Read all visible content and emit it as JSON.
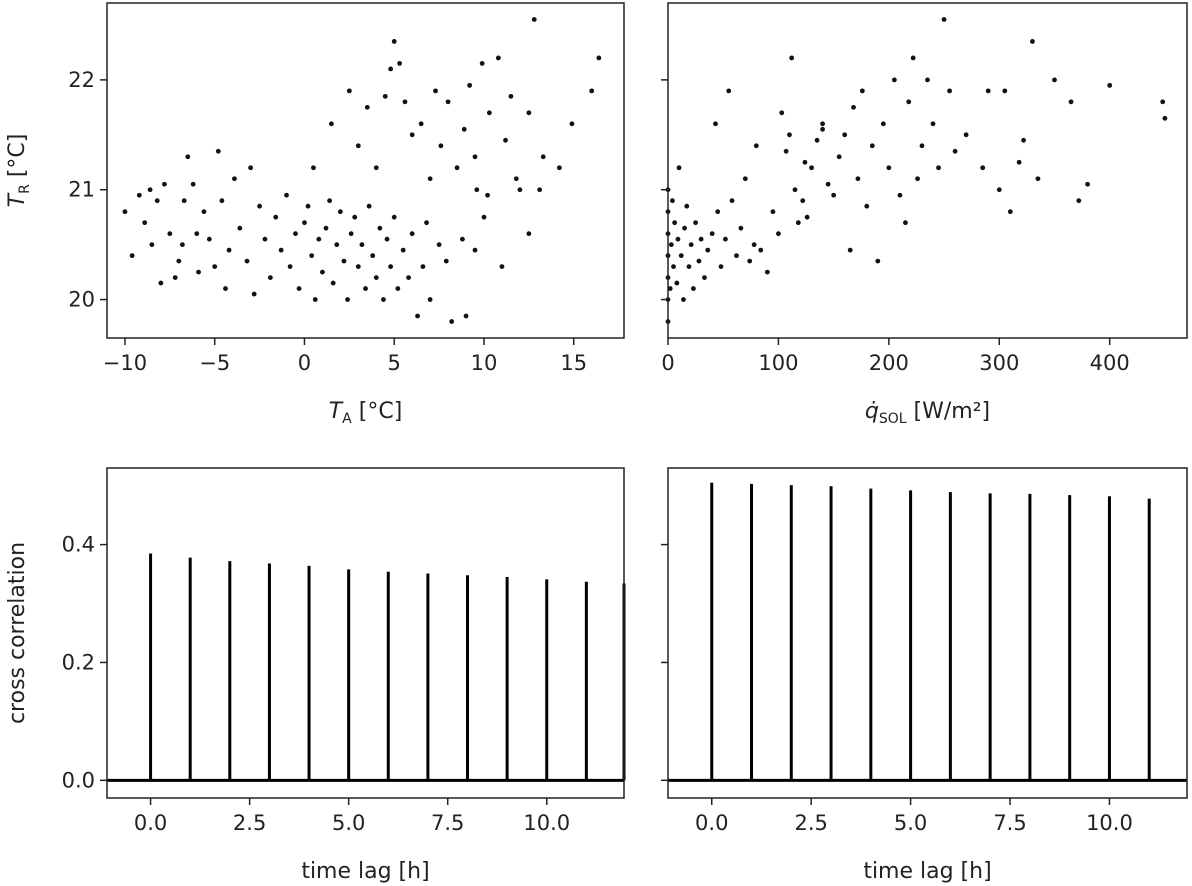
{
  "chart_data": [
    {
      "panel": "top-left",
      "type": "scatter",
      "xlabel": {
        "symbol": "T",
        "sub": "A",
        "unit": " [°C]"
      },
      "ylabel": {
        "symbol": "T",
        "sub": "R",
        "unit": " [°C]"
      },
      "xlim": [
        -11,
        17.8
      ],
      "ylim": [
        19.65,
        22.7
      ],
      "xticks": [
        -10,
        -5,
        0,
        5,
        10,
        15
      ],
      "yticks": [
        20,
        21,
        22
      ],
      "grid": false,
      "points": [
        [
          -10,
          20.8
        ],
        [
          -9.6,
          20.4
        ],
        [
          -8.9,
          20.7
        ],
        [
          -8.5,
          20.5
        ],
        [
          -8.6,
          21
        ],
        [
          -8.2,
          20.9
        ],
        [
          -7.8,
          21.05
        ],
        [
          -7.5,
          20.6
        ],
        [
          -7.2,
          20.2
        ],
        [
          -7.0,
          20.35
        ],
        [
          -6.7,
          20.9
        ],
        [
          -6.5,
          21.3
        ],
        [
          -6.2,
          21.05
        ],
        [
          -6.0,
          20.6
        ],
        [
          -5.6,
          20.8
        ],
        [
          -5.3,
          20.55
        ],
        [
          -5.0,
          20.3
        ],
        [
          -4.8,
          21.35
        ],
        [
          -4.6,
          20.9
        ],
        [
          -4.2,
          20.45
        ],
        [
          -3.9,
          21.1
        ],
        [
          -3.6,
          20.65
        ],
        [
          -3.2,
          20.35
        ],
        [
          -3.0,
          21.2
        ],
        [
          -2.8,
          20.05
        ],
        [
          -2.5,
          20.85
        ],
        [
          -2.2,
          20.55
        ],
        [
          -1.9,
          20.2
        ],
        [
          -1.6,
          20.75
        ],
        [
          -1.3,
          20.45
        ],
        [
          -1.0,
          20.95
        ],
        [
          -0.8,
          20.3
        ],
        [
          -0.5,
          20.6
        ],
        [
          -0.3,
          20.1
        ],
        [
          0.0,
          20.7
        ],
        [
          0.2,
          20.85
        ],
        [
          0.4,
          20.4
        ],
        [
          0.6,
          20.0
        ],
        [
          0.8,
          20.55
        ],
        [
          1.0,
          20.25
        ],
        [
          1.2,
          20.65
        ],
        [
          1.4,
          20.9
        ],
        [
          1.6,
          20.15
        ],
        [
          1.8,
          20.5
        ],
        [
          2.0,
          20.8
        ],
        [
          2.2,
          20.35
        ],
        [
          2.4,
          20.0
        ],
        [
          2.6,
          20.6
        ],
        [
          2.8,
          20.75
        ],
        [
          3.0,
          20.3
        ],
        [
          3.2,
          20.5
        ],
        [
          3.4,
          20.1
        ],
        [
          3.6,
          20.85
        ],
        [
          3.8,
          20.4
        ],
        [
          4.0,
          20.2
        ],
        [
          4.2,
          20.65
        ],
        [
          4.4,
          20.0
        ],
        [
          4.6,
          20.55
        ],
        [
          4.8,
          20.3
        ],
        [
          5.0,
          20.75
        ],
        [
          5.2,
          20.1
        ],
        [
          5.5,
          20.45
        ],
        [
          5.8,
          20.2
        ],
        [
          6.0,
          20.6
        ],
        [
          6.3,
          19.85
        ],
        [
          6.6,
          20.3
        ],
        [
          7.0,
          20.0
        ],
        [
          7.5,
          20.5
        ],
        [
          8.2,
          19.8
        ],
        [
          9.0,
          19.85
        ],
        [
          9.5,
          20.45
        ],
        [
          10,
          20.75
        ],
        [
          11,
          20.3
        ],
        [
          12.5,
          20.6
        ],
        [
          13.1,
          21.0
        ],
        [
          -9.2,
          20.95
        ],
        [
          -8.0,
          20.15
        ],
        [
          -6.8,
          20.5
        ],
        [
          -5.9,
          20.25
        ],
        [
          -4.4,
          20.1
        ],
        [
          0.5,
          21.2
        ],
        [
          1.5,
          21.6
        ],
        [
          2.5,
          21.9
        ],
        [
          3.0,
          21.4
        ],
        [
          3.5,
          21.75
        ],
        [
          4.0,
          21.2
        ],
        [
          4.5,
          21.85
        ],
        [
          4.8,
          22.1
        ],
        [
          5.0,
          22.35
        ],
        [
          5.3,
          22.15
        ],
        [
          5.6,
          21.8
        ],
        [
          6.0,
          21.5
        ],
        [
          6.5,
          21.6
        ],
        [
          7.0,
          21.1
        ],
        [
          7.3,
          21.9
        ],
        [
          7.6,
          21.4
        ],
        [
          8.0,
          21.8
        ],
        [
          8.5,
          21.2
        ],
        [
          8.9,
          21.55
        ],
        [
          9.2,
          21.95
        ],
        [
          9.5,
          21.3
        ],
        [
          9.9,
          22.15
        ],
        [
          10.3,
          21.7
        ],
        [
          10.8,
          22.2
        ],
        [
          11.2,
          21.45
        ],
        [
          11.5,
          21.85
        ],
        [
          12.0,
          21.0
        ],
        [
          12.5,
          21.7
        ],
        [
          12.8,
          22.55
        ],
        [
          13.3,
          21.3
        ],
        [
          14.2,
          21.2
        ],
        [
          14.9,
          21.6
        ],
        [
          16.0,
          21.9
        ],
        [
          16.4,
          22.2
        ],
        [
          10.2,
          20.95
        ],
        [
          9.6,
          21.0
        ],
        [
          11.8,
          21.1
        ],
        [
          7.9,
          20.35
        ],
        [
          8.8,
          20.55
        ],
        [
          6.8,
          20.7
        ]
      ]
    },
    {
      "panel": "top-right",
      "type": "scatter",
      "xlabel": {
        "symbol": "q̇",
        "sub": "SOL",
        "unit": " [W/m²]"
      },
      "xlim": [
        0,
        470
      ],
      "ylim": [
        19.65,
        22.7
      ],
      "xticks": [
        0,
        100,
        200,
        300,
        400
      ],
      "yticks": [
        20,
        21,
        22
      ],
      "grid": false,
      "points": [
        [
          0,
          19.8
        ],
        [
          0,
          20.0
        ],
        [
          0,
          20.2
        ],
        [
          0,
          20.4
        ],
        [
          0,
          20.6
        ],
        [
          0,
          20.8
        ],
        [
          0,
          21.0
        ],
        [
          2,
          20.1
        ],
        [
          3,
          20.5
        ],
        [
          4,
          20.9
        ],
        [
          5,
          20.3
        ],
        [
          6,
          20.7
        ],
        [
          8,
          20.15
        ],
        [
          9,
          20.55
        ],
        [
          10,
          21.2
        ],
        [
          12,
          20.4
        ],
        [
          14,
          20.0
        ],
        [
          15,
          20.65
        ],
        [
          17,
          20.85
        ],
        [
          19,
          20.3
        ],
        [
          21,
          20.5
        ],
        [
          23,
          20.1
        ],
        [
          25,
          20.7
        ],
        [
          28,
          20.35
        ],
        [
          30,
          20.55
        ],
        [
          33,
          20.2
        ],
        [
          36,
          20.45
        ],
        [
          40,
          20.6
        ],
        [
          43,
          21.6
        ],
        [
          45,
          20.8
        ],
        [
          48,
          20.3
        ],
        [
          52,
          20.55
        ],
        [
          55,
          21.9
        ],
        [
          58,
          20.9
        ],
        [
          62,
          20.4
        ],
        [
          66,
          20.65
        ],
        [
          70,
          21.1
        ],
        [
          74,
          20.35
        ],
        [
          78,
          20.5
        ],
        [
          80,
          21.4
        ],
        [
          84,
          20.45
        ],
        [
          90,
          20.25
        ],
        [
          95,
          20.8
        ],
        [
          100,
          20.6
        ],
        [
          103,
          21.7
        ],
        [
          107,
          21.35
        ],
        [
          110,
          21.5
        ],
        [
          112,
          22.2
        ],
        [
          115,
          21.0
        ],
        [
          118,
          20.7
        ],
        [
          122,
          20.9
        ],
        [
          126,
          20.75
        ],
        [
          130,
          21.2
        ],
        [
          135,
          21.45
        ],
        [
          140,
          21.6
        ],
        [
          145,
          21.05
        ],
        [
          150,
          20.95
        ],
        [
          155,
          21.3
        ],
        [
          160,
          21.5
        ],
        [
          165,
          20.45
        ],
        [
          168,
          21.75
        ],
        [
          172,
          21.1
        ],
        [
          176,
          21.9
        ],
        [
          180,
          20.85
        ],
        [
          185,
          21.4
        ],
        [
          190,
          20.35
        ],
        [
          195,
          21.6
        ],
        [
          200,
          21.2
        ],
        [
          205,
          22.0
        ],
        [
          210,
          20.95
        ],
        [
          215,
          20.7
        ],
        [
          218,
          21.8
        ],
        [
          222,
          22.2
        ],
        [
          226,
          21.1
        ],
        [
          230,
          21.4
        ],
        [
          235,
          22.0
        ],
        [
          240,
          21.6
        ],
        [
          245,
          21.2
        ],
        [
          250,
          22.55
        ],
        [
          255,
          21.9
        ],
        [
          260,
          21.35
        ],
        [
          270,
          21.5
        ],
        [
          285,
          21.2
        ],
        [
          290,
          21.9
        ],
        [
          300,
          21.0
        ],
        [
          305,
          21.9
        ],
        [
          310,
          20.8
        ],
        [
          318,
          21.25
        ],
        [
          322,
          21.45
        ],
        [
          330,
          22.35
        ],
        [
          335,
          21.1
        ],
        [
          350,
          22.0
        ],
        [
          365,
          21.8
        ],
        [
          372,
          20.9
        ],
        [
          380,
          21.05
        ],
        [
          400,
          21.95
        ],
        [
          448,
          21.8
        ],
        [
          450,
          21.65
        ],
        [
          140,
          21.55
        ],
        [
          124,
          21.25
        ]
      ]
    },
    {
      "panel": "bottom-left",
      "type": "bar",
      "xlabel": "time lag [h]",
      "ylabel": "cross correlation",
      "xlim": [
        -1.1,
        11.95
      ],
      "ylim": [
        -0.03,
        0.53
      ],
      "xticks": [
        0,
        2.5,
        5,
        7.5,
        10
      ],
      "xtick_labels": [
        "0.0",
        "2.5",
        "5.0",
        "7.5",
        "10.0"
      ],
      "yticks": [
        0,
        0.2,
        0.4
      ],
      "ytick_labels": [
        "0.0",
        "0.2",
        "0.4"
      ],
      "x": [
        0,
        1,
        2,
        3,
        4,
        5,
        6,
        7,
        8,
        9,
        10,
        11,
        11.95
      ],
      "values": [
        0.385,
        0.378,
        0.372,
        0.368,
        0.364,
        0.358,
        0.354,
        0.351,
        0.348,
        0.345,
        0.341,
        0.337,
        0.334
      ]
    },
    {
      "panel": "bottom-right",
      "type": "bar",
      "xlabel": "time lag [h]",
      "xlim": [
        -1.1,
        11.95
      ],
      "ylim": [
        -0.03,
        0.53
      ],
      "xticks": [
        0,
        2.5,
        5,
        7.5,
        10
      ],
      "xtick_labels": [
        "0.0",
        "2.5",
        "5.0",
        "7.5",
        "10.0"
      ],
      "yticks": [
        0,
        0.2,
        0.4
      ],
      "x": [
        0,
        1,
        2,
        3,
        4,
        5,
        6,
        7,
        8,
        9,
        10,
        11
      ],
      "values": [
        0.505,
        0.503,
        0.501,
        0.499,
        0.495,
        0.492,
        0.489,
        0.487,
        0.486,
        0.484,
        0.482,
        0.478
      ]
    }
  ]
}
